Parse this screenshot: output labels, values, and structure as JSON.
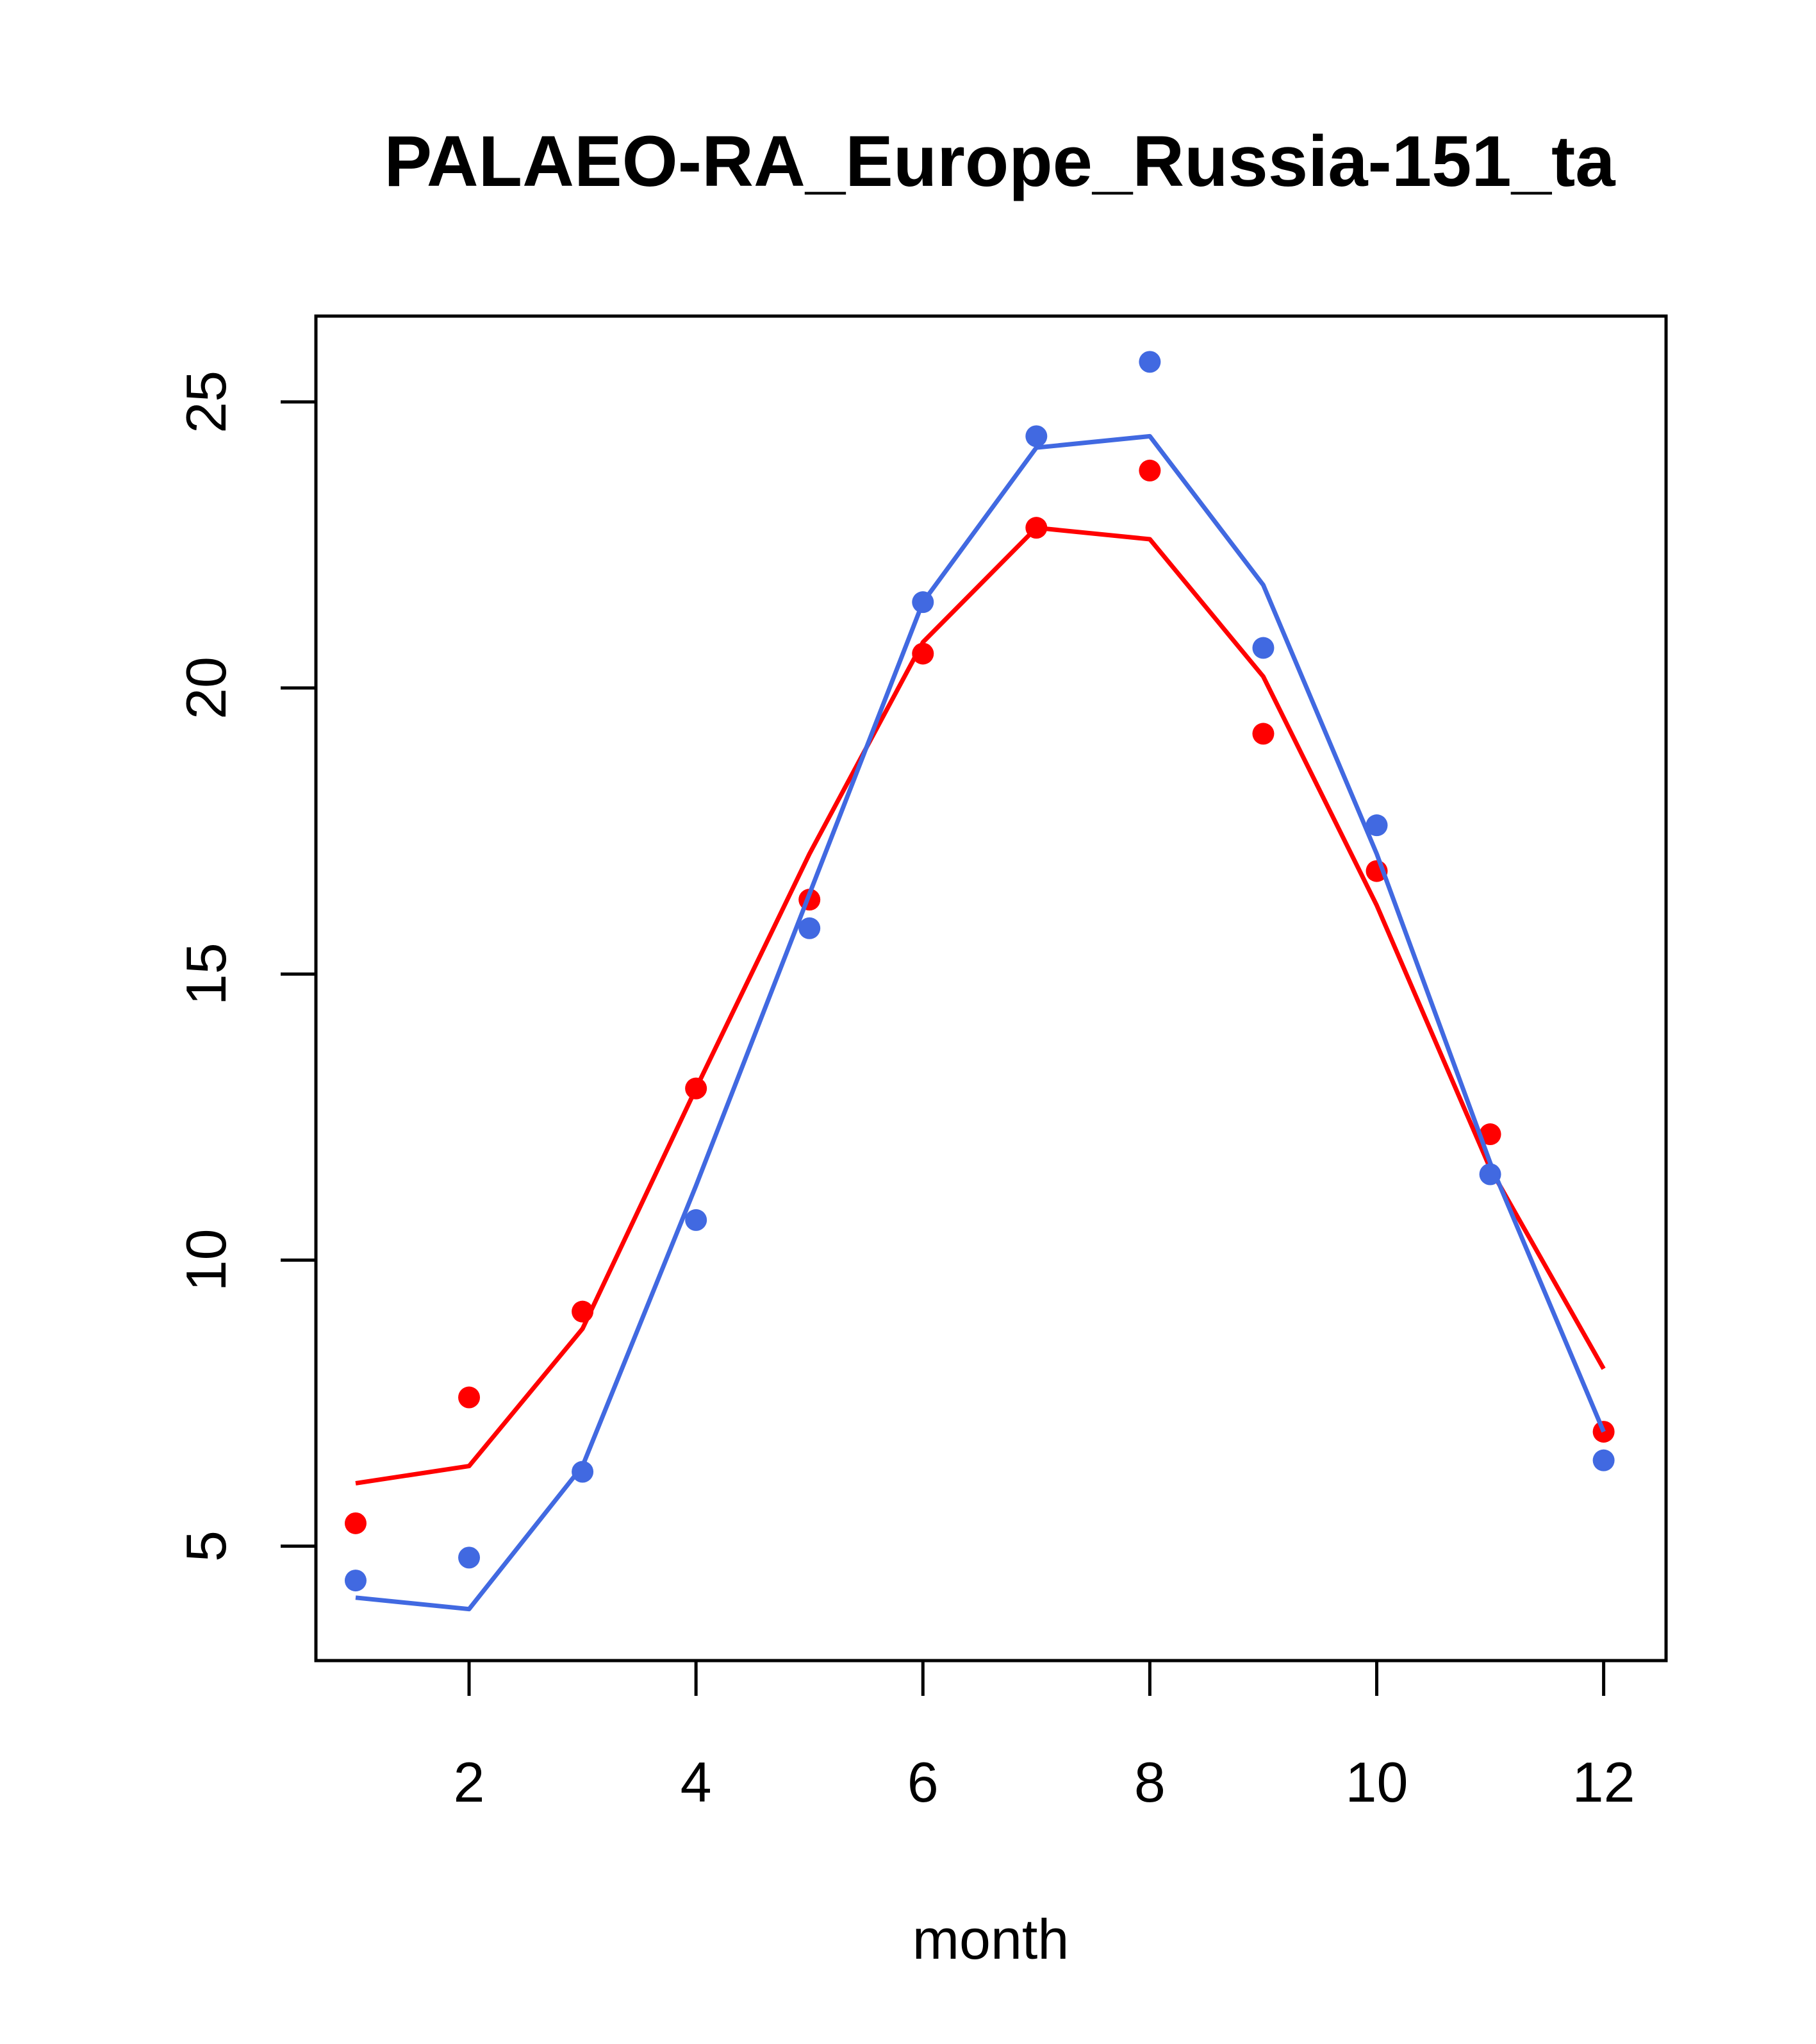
{
  "chart_data": {
    "type": "line",
    "title": "PALAEO-RA_Europe_Russia-151_ta",
    "xlabel": "month",
    "ylabel": "",
    "xlim": [
      0.65,
      12.55
    ],
    "ylim": [
      3.0,
      26.5
    ],
    "x_ticks": [
      2,
      4,
      6,
      8,
      10,
      12
    ],
    "y_ticks": [
      5,
      10,
      15,
      20,
      25
    ],
    "grid": false,
    "legend": "none",
    "x": [
      1,
      2,
      3,
      4,
      5,
      6,
      7,
      8,
      9,
      10,
      11,
      12
    ],
    "series": [
      {
        "color": "#ff0000",
        "line": [
          6.1,
          6.4,
          8.8,
          13.0,
          17.1,
          20.8,
          22.8,
          22.6,
          20.2,
          16.2,
          11.6,
          8.1
        ],
        "points": [
          5.4,
          7.6,
          9.1,
          13.0,
          16.3,
          20.6,
          22.8,
          23.8,
          19.2,
          16.8,
          12.2,
          7.0
        ]
      },
      {
        "color": "#4169e1",
        "line": [
          4.1,
          3.9,
          6.4,
          11.3,
          16.4,
          21.5,
          24.2,
          24.4,
          21.8,
          17.1,
          11.7,
          7.0
        ],
        "points": [
          4.4,
          4.8,
          6.3,
          10.7,
          15.8,
          21.5,
          24.4,
          25.7,
          20.7,
          17.6,
          11.5,
          6.5
        ]
      }
    ]
  }
}
